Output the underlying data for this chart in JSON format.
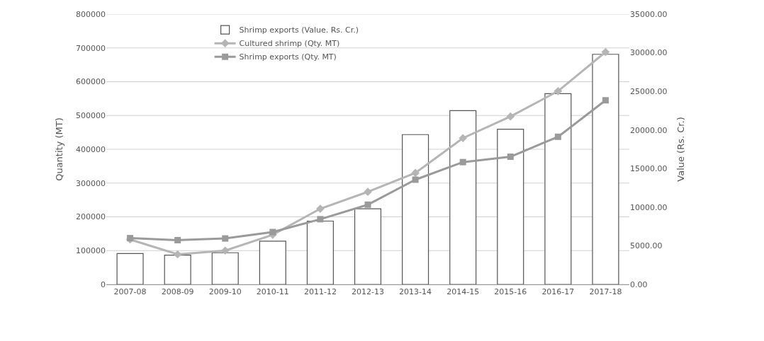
{
  "chart_data": {
    "type": "bar",
    "categories": [
      "2007-08",
      "2008-09",
      "2009-10",
      "2010-11",
      "2011-12",
      "2012-13",
      "2013-14",
      "2014-15",
      "2015-16",
      "2016-17",
      "2017-18"
    ],
    "series": [
      {
        "name": "Shrimp exports (Value. Rs. Cr.)",
        "axis": "y2",
        "color": "#ffffff",
        "values": [
          4000,
          3800,
          4100,
          5600,
          8200,
          9800,
          19400,
          22500,
          20100,
          24700,
          29800
        ]
      },
      {
        "name": "Cultured shrimp (Qty. MT)",
        "type": "line",
        "axis": "y",
        "color": "#b5b5b5",
        "marker": "diamond",
        "values": [
          133000,
          89000,
          100000,
          147000,
          224000,
          274000,
          330000,
          433000,
          497000,
          572000,
          688000
        ]
      },
      {
        "name": "Shrimp exports (Qty. MT)",
        "type": "line",
        "axis": "y",
        "color": "#9a9a9a",
        "marker": "square",
        "values": [
          137000,
          131000,
          136000,
          155000,
          193000,
          236000,
          310000,
          362000,
          378000,
          437000,
          545000
        ]
      }
    ],
    "ylabel": "Quantity (MT)",
    "y2label": "Value (Rs. Cr.)",
    "ylim": [
      0,
      800000
    ],
    "yticks": [
      0,
      100000,
      200000,
      300000,
      400000,
      500000,
      600000,
      700000,
      800000
    ],
    "y2lim": [
      0,
      35000
    ],
    "y2ticks": [
      {
        "value": 0,
        "label": "0.00"
      },
      {
        "value": 5000,
        "label": "5000.00"
      },
      {
        "value": 10000,
        "label": "10000.00"
      },
      {
        "value": 15000,
        "label": "15000.00"
      },
      {
        "value": 20000,
        "label": "20000.00"
      },
      {
        "value": 25000,
        "label": "25000.00"
      },
      {
        "value": 30000,
        "label": "30000.00"
      },
      {
        "value": 35000,
        "label": "35000.00"
      }
    ],
    "grid": "y",
    "legend": "top left"
  }
}
